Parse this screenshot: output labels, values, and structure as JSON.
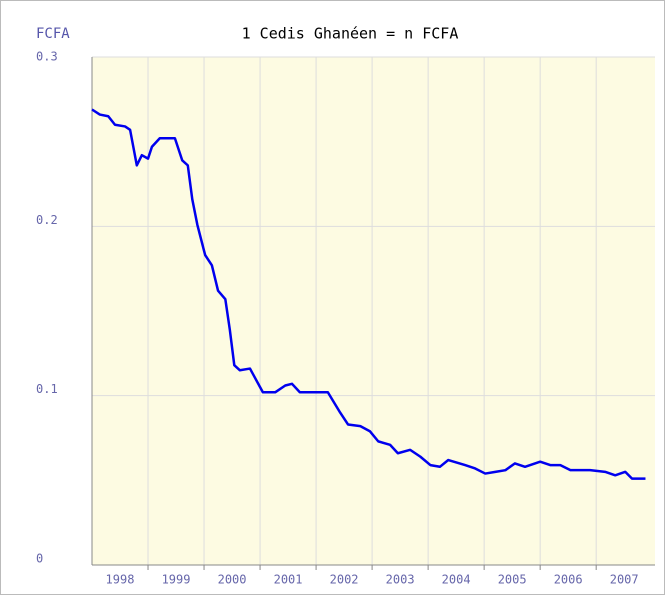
{
  "chart_data": {
    "type": "line",
    "title": "1 Cedis Ghanéen = n FCFA",
    "y_label": "FCFA",
    "x": [
      1998.0,
      1998.14,
      1998.29,
      1998.41,
      1998.59,
      1998.68,
      1998.8,
      1998.89,
      1999.0,
      1999.07,
      1999.21,
      1999.48,
      1999.61,
      1999.71,
      1999.79,
      1999.88,
      2000.02,
      2000.14,
      2000.25,
      2000.38,
      2000.46,
      2000.54,
      2000.64,
      2000.82,
      2001.05,
      2001.27,
      2001.45,
      2001.57,
      2001.71,
      2001.89,
      2002.07,
      2002.21,
      2002.43,
      2002.57,
      2002.79,
      2002.96,
      2003.11,
      2003.32,
      2003.46,
      2003.68,
      2003.86,
      2004.04,
      2004.21,
      2004.36,
      2004.66,
      2004.84,
      2005.02,
      2005.2,
      2005.38,
      2005.55,
      2005.73,
      2006.0,
      2006.18,
      2006.36,
      2006.54,
      2006.89,
      2007.16,
      2007.34,
      2007.52,
      2007.64,
      2007.88
    ],
    "series": [
      {
        "name": "FCFA",
        "color": "#0000ee",
        "values": [
          0.269,
          0.266,
          0.265,
          0.26,
          0.259,
          0.257,
          0.236,
          0.242,
          0.24,
          0.247,
          0.252,
          0.252,
          0.239,
          0.236,
          0.216,
          0.201,
          0.183,
          0.177,
          0.162,
          0.157,
          0.139,
          0.118,
          0.115,
          0.116,
          0.102,
          0.102,
          0.106,
          0.107,
          0.102,
          0.102,
          0.102,
          0.102,
          0.09,
          0.083,
          0.082,
          0.079,
          0.073,
          0.071,
          0.066,
          0.068,
          0.064,
          0.059,
          0.058,
          0.062,
          0.059,
          0.057,
          0.054,
          0.055,
          0.056,
          0.06,
          0.058,
          0.061,
          0.059,
          0.059,
          0.056,
          0.056,
          0.055,
          0.053,
          0.055,
          0.051,
          0.051
        ]
      }
    ],
    "x_labels": [
      "1998",
      "1999",
      "2000",
      "2001",
      "2002",
      "2003",
      "2004",
      "2005",
      "2006",
      "2007"
    ],
    "xlim": [
      1998,
      2008.05
    ],
    "xticks": [
      1999,
      2000,
      2001,
      2002,
      2003,
      2004,
      2005,
      2006,
      2007
    ],
    "ylim": [
      0,
      0.3
    ],
    "yticks": [
      0,
      0.1,
      0.2,
      0.3
    ],
    "grid": true
  }
}
